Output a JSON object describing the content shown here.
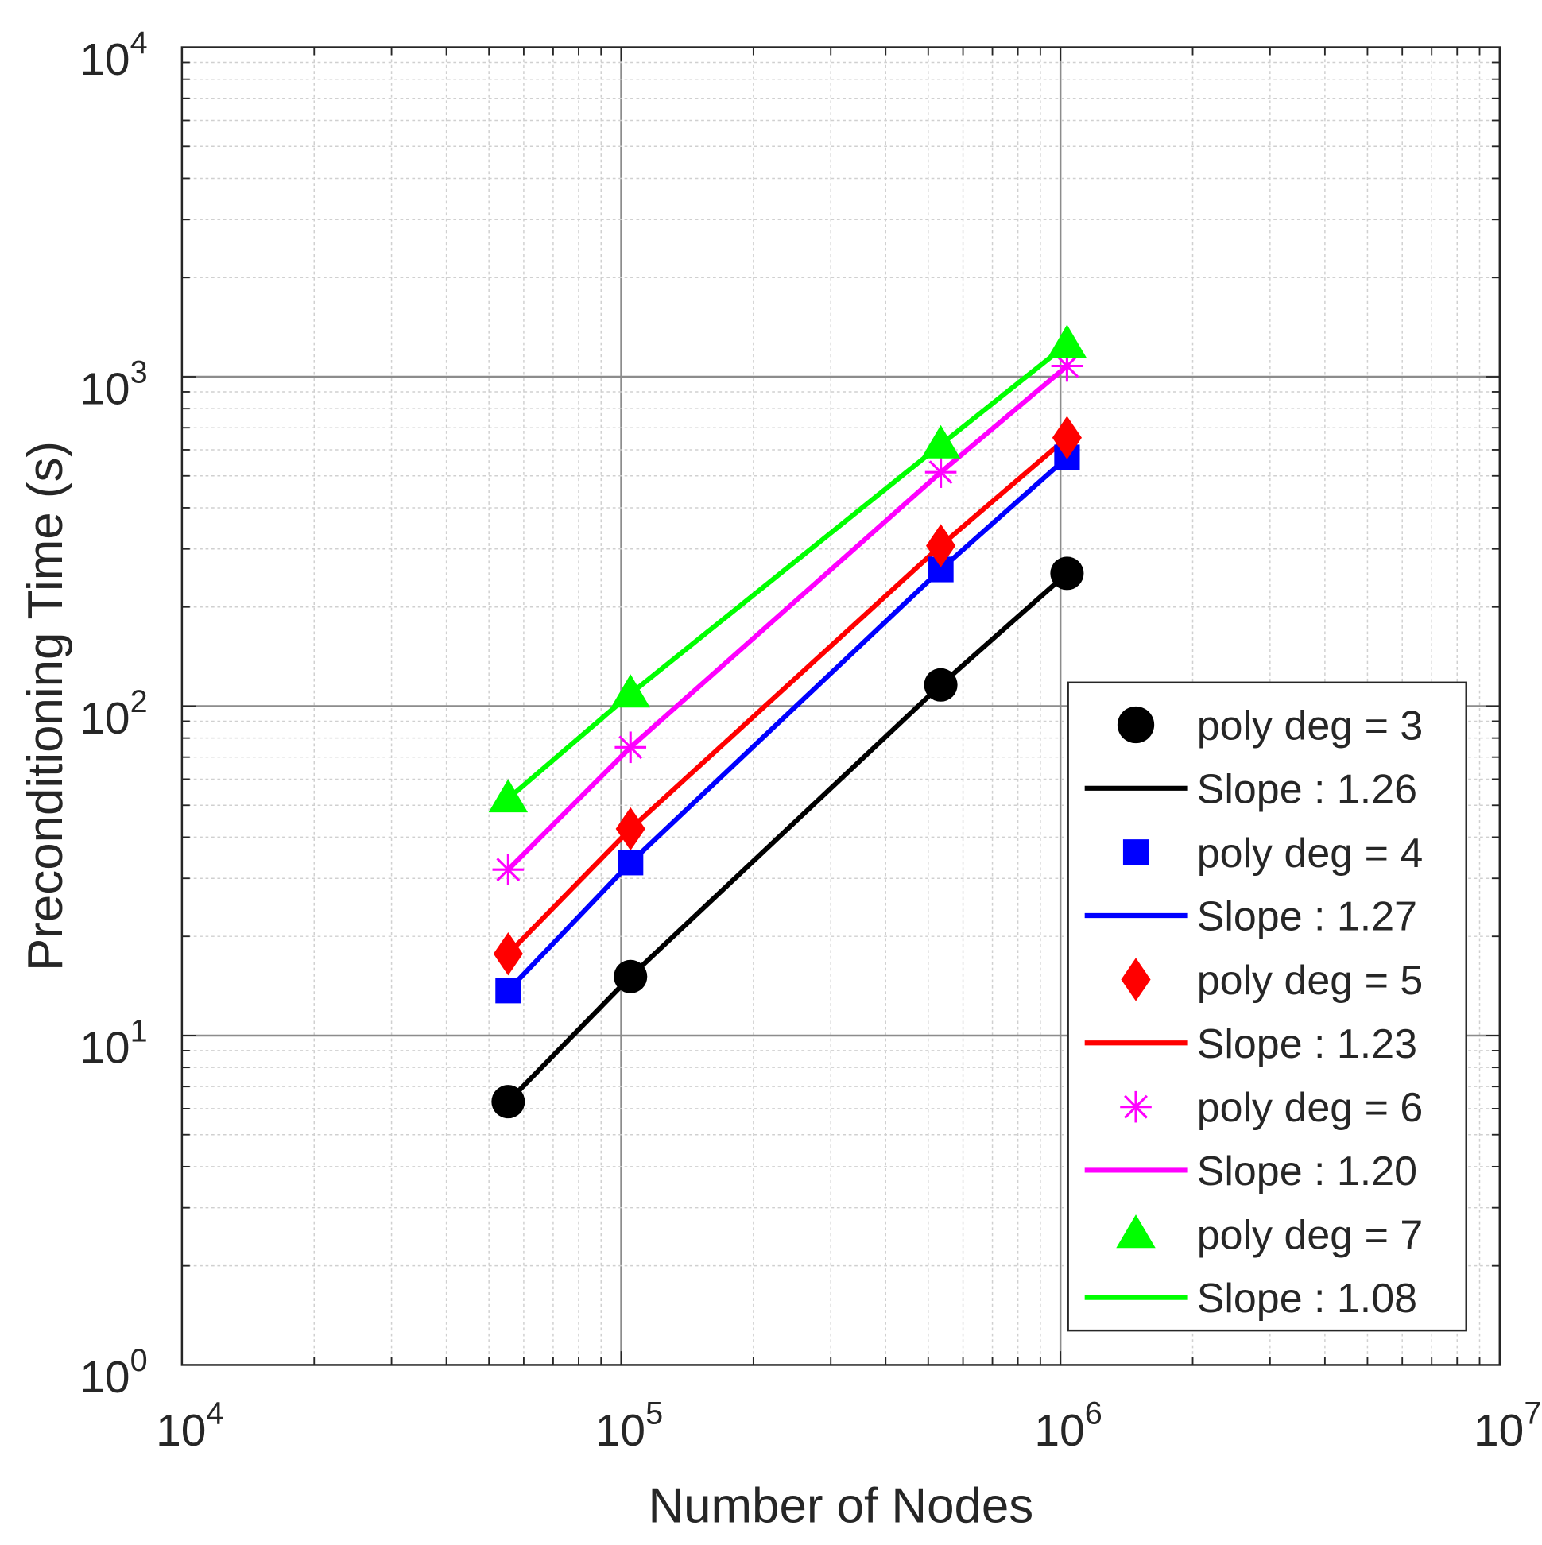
{
  "chart_data": {
    "type": "line",
    "title": "",
    "xlabel": "Number of Nodes",
    "ylabel": "Preconditioning Time (s)",
    "xscale": "log",
    "yscale": "log",
    "xlim": [
      10000,
      10000000
    ],
    "ylim": [
      1,
      10000
    ],
    "grid": true,
    "legend_position": "bottom-right",
    "x_ticks": [
      {
        "base": "10",
        "exp": "4"
      },
      {
        "base": "10",
        "exp": "5"
      },
      {
        "base": "10",
        "exp": "6"
      },
      {
        "base": "10",
        "exp": "7"
      }
    ],
    "y_ticks": [
      {
        "base": "10",
        "exp": "0"
      },
      {
        "base": "10",
        "exp": "1"
      },
      {
        "base": "10",
        "exp": "2"
      },
      {
        "base": "10",
        "exp": "3"
      },
      {
        "base": "10",
        "exp": "4"
      }
    ],
    "x": [
      55300,
      105000,
      534000,
      1035000
    ],
    "series": [
      {
        "name": "poly deg = 3",
        "fit_label": "Slope : 1.26",
        "color": "#000000",
        "marker": "circle",
        "values": [
          6.3,
          15.1,
          116,
          253
        ]
      },
      {
        "name": "poly deg = 4",
        "fit_label": "Slope : 1.27",
        "color": "#0000ff",
        "marker": "square",
        "values": [
          13.7,
          33.5,
          260,
          569
        ]
      },
      {
        "name": "poly deg = 5",
        "fit_label": "Slope : 1.23",
        "color": "#ff0000",
        "marker": "diamond",
        "values": [
          17.7,
          42.4,
          307,
          653
        ]
      },
      {
        "name": "poly deg = 6",
        "fit_label": "Slope : 1.20",
        "color": "#ff00ff",
        "marker": "asterisk",
        "values": [
          31.9,
          75,
          513,
          1078
        ]
      },
      {
        "name": "poly deg = 7",
        "fit_label": "Slope : 1.08",
        "color": "#00ff00",
        "marker": "triangle",
        "values": [
          52.4,
          109,
          622,
          1255
        ]
      }
    ]
  }
}
